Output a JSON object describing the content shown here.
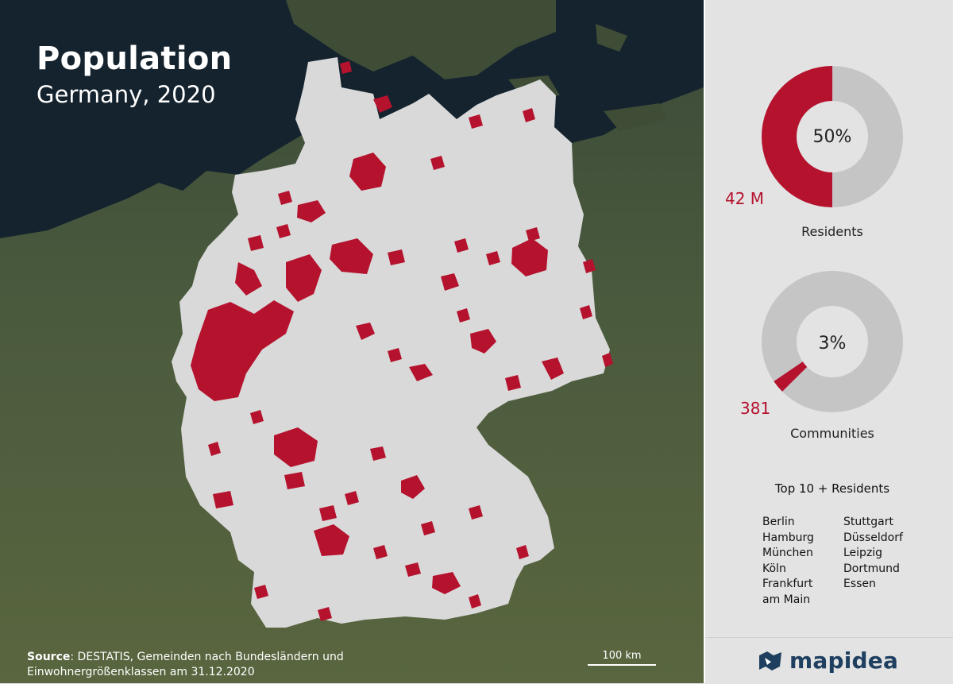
{
  "map": {
    "title": "Population",
    "subtitle": "Germany, 2020",
    "source_label": "Source",
    "source_text": ": DESTATIS, Gemeinden nach Bundesländern und Einwohnergrößenklassen am 31.12.2020",
    "scale_label": "100 km",
    "colors": {
      "sea": "#14232e",
      "land": "#4c5b3c",
      "country": "#d9d9d9",
      "highlight": "#b5122e"
    }
  },
  "panel": {
    "residents": {
      "percent": 50,
      "percent_label": "50%",
      "value_label": "42 M",
      "label": "Residents"
    },
    "communities": {
      "percent": 3,
      "percent_label": "3%",
      "value_label": "381",
      "label": "Communities"
    },
    "top10": {
      "title": "Top 10 + Residents",
      "left": [
        "Berlin",
        "Hamburg",
        "München",
        "Köln",
        "Frankfurt",
        "am Main"
      ],
      "right": [
        "Stuttgart",
        "Düsseldorf",
        "Leipzig",
        "Dortmund",
        "Essen"
      ]
    },
    "brand": "mapidea",
    "colors": {
      "accent": "#b5122e",
      "ring": "#c5c5c5",
      "brand": "#1f3f60"
    }
  }
}
